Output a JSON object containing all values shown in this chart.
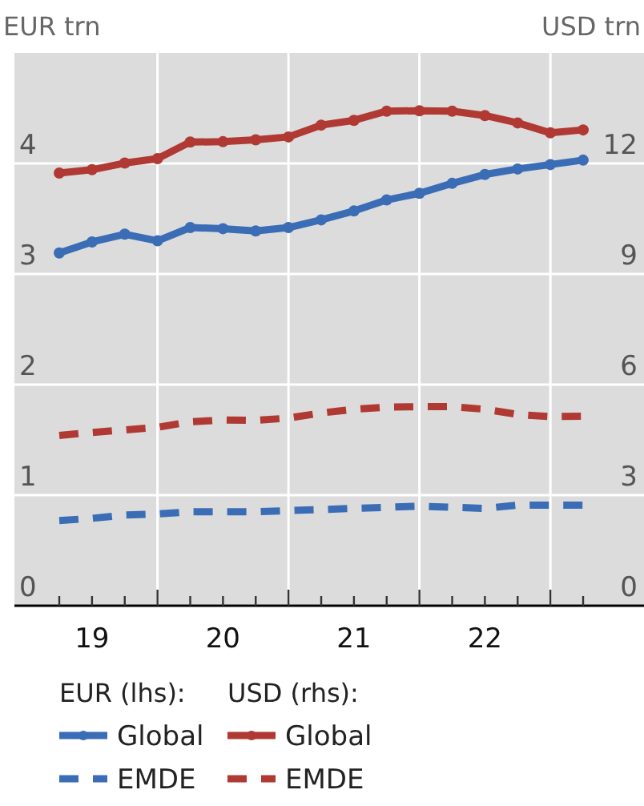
{
  "chart_data": {
    "type": "line",
    "ylabel": "EUR trn",
    "y2label": "USD trn",
    "categories": [
      null,
      "19",
      null,
      null,
      null,
      "20",
      null,
      null,
      null,
      "21",
      null,
      null,
      null,
      "22",
      null,
      null,
      null
    ],
    "ylim": [
      0,
      5
    ],
    "yticks": [
      0,
      1,
      2,
      3,
      4
    ],
    "y2lim": [
      0,
      15
    ],
    "y2ticks": [
      0,
      3,
      6,
      9,
      12
    ],
    "grid": true,
    "legend": "bottom",
    "annotations": [
      "EUR (lhs):",
      "USD (rhs):"
    ],
    "series": [
      {
        "name": "Global",
        "color": "#3a6db5",
        "marker": "circle",
        "line_style": "solid",
        "values": [
          3.19,
          3.29,
          3.36,
          3.3,
          3.42,
          3.41,
          3.39,
          3.42,
          3.49,
          3.57,
          3.67,
          3.73,
          3.82,
          3.9,
          3.95,
          3.99,
          4.03
        ]
      },
      {
        "name": "Global",
        "color": "#b03a33",
        "axis": "y2",
        "marker": "circle",
        "line_style": "solid",
        "values": [
          11.74,
          11.83,
          12.01,
          12.13,
          12.58,
          12.59,
          12.64,
          12.72,
          13.04,
          13.17,
          13.42,
          13.43,
          13.42,
          13.3,
          13.1,
          12.83,
          12.91
        ]
      },
      {
        "name": "EMDE",
        "color": "#3a6db5",
        "marker": "none",
        "line_style": "dashed",
        "values": [
          0.77,
          0.79,
          0.82,
          0.83,
          0.85,
          0.85,
          0.85,
          0.86,
          0.87,
          0.88,
          0.89,
          0.9,
          0.89,
          0.88,
          0.91,
          0.91,
          0.91
        ]
      },
      {
        "name": "EMDE",
        "color": "#b03a33",
        "axis": "y2",
        "marker": "none",
        "line_style": "dashed",
        "values": [
          4.62,
          4.7,
          4.77,
          4.84,
          4.99,
          5.04,
          5.03,
          5.09,
          5.23,
          5.33,
          5.39,
          5.4,
          5.4,
          5.33,
          5.19,
          5.13,
          5.14
        ]
      }
    ]
  }
}
